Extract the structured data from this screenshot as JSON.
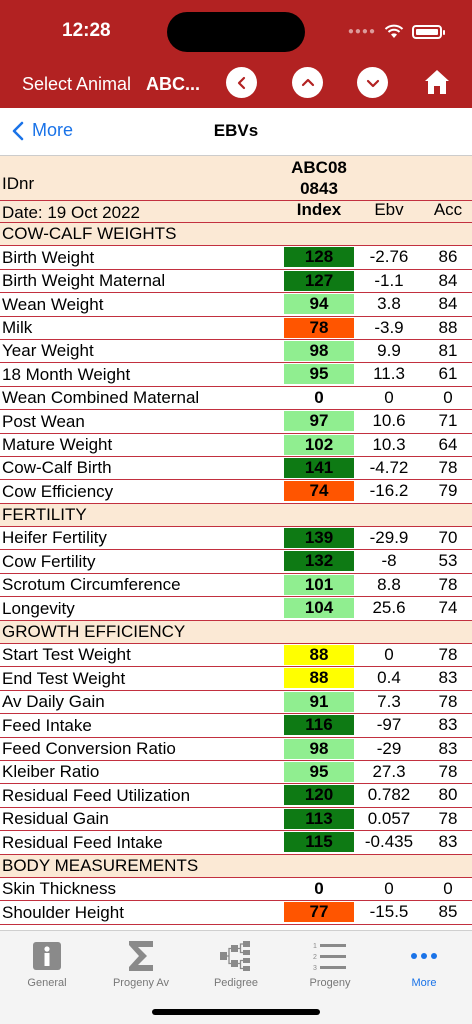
{
  "status": {
    "time": "12:28"
  },
  "toolbar": {
    "select_label": "Select Animal",
    "select_value": "ABC..."
  },
  "nav": {
    "back_label": "More",
    "title": "EBVs"
  },
  "header": {
    "idnr_label": "IDnr",
    "animal_id_line1": "ABC08",
    "animal_id_line2": "0843",
    "date_label": "Date:  19 Oct 2022",
    "col_index": "Index",
    "col_ebv": "Ebv",
    "col_acc": "Acc"
  },
  "colors": {
    "dark_green": "#0e7a14",
    "light_green": "#90ee90",
    "orange": "#ff5500",
    "yellow": "#ffff00",
    "brand_red": "#b22222"
  },
  "rows": [
    {
      "type": "section",
      "name": "COW-CALF WEIGHTS"
    },
    {
      "type": "trait",
      "name": "Birth Weight",
      "index": "128",
      "ebv": "-2.76",
      "acc": "86",
      "color": "dark"
    },
    {
      "type": "trait",
      "name": "Birth Weight Maternal",
      "index": "127",
      "ebv": "-1.1",
      "acc": "84",
      "color": "dark"
    },
    {
      "type": "trait",
      "name": "Wean Weight",
      "index": "94",
      "ebv": "3.8",
      "acc": "84",
      "color": "light"
    },
    {
      "type": "trait",
      "name": "Milk",
      "index": "78",
      "ebv": "-3.9",
      "acc": "88",
      "color": "orange"
    },
    {
      "type": "trait",
      "name": "Year Weight",
      "index": "98",
      "ebv": "9.9",
      "acc": "81",
      "color": "light"
    },
    {
      "type": "trait",
      "name": "18 Month Weight",
      "index": "95",
      "ebv": "11.3",
      "acc": "61",
      "color": "light"
    },
    {
      "type": "trait",
      "name": "Wean Combined Maternal",
      "index": "0",
      "ebv": "0",
      "acc": "0",
      "color": "none"
    },
    {
      "type": "trait",
      "name": "Post Wean",
      "index": "97",
      "ebv": "10.6",
      "acc": "71",
      "color": "light"
    },
    {
      "type": "trait",
      "name": "Mature Weight",
      "index": "102",
      "ebv": "10.3",
      "acc": "64",
      "color": "light"
    },
    {
      "type": "trait",
      "name": "Cow-Calf Birth",
      "index": "141",
      "ebv": "-4.72",
      "acc": "78",
      "color": "dark"
    },
    {
      "type": "trait",
      "name": "Cow Efficiency",
      "index": "74",
      "ebv": "-16.2",
      "acc": "79",
      "color": "orange"
    },
    {
      "type": "section",
      "name": "FERTILITY"
    },
    {
      "type": "trait",
      "name": "Heifer Fertility",
      "index": "139",
      "ebv": "-29.9",
      "acc": "70",
      "color": "dark"
    },
    {
      "type": "trait",
      "name": "Cow Fertility",
      "index": "132",
      "ebv": "-8",
      "acc": "53",
      "color": "dark"
    },
    {
      "type": "trait",
      "name": "Scrotum Circumference",
      "index": "101",
      "ebv": "8.8",
      "acc": "78",
      "color": "light"
    },
    {
      "type": "trait",
      "name": "Longevity",
      "index": "104",
      "ebv": "25.6",
      "acc": "74",
      "color": "light"
    },
    {
      "type": "section",
      "name": "GROWTH EFFICIENCY"
    },
    {
      "type": "trait",
      "name": "Start Test Weight",
      "index": "88",
      "ebv": "0",
      "acc": "78",
      "color": "yellow"
    },
    {
      "type": "trait",
      "name": "End Test Weight",
      "index": "88",
      "ebv": "0.4",
      "acc": "83",
      "color": "yellow"
    },
    {
      "type": "trait",
      "name": "Av Daily Gain",
      "index": "91",
      "ebv": "7.3",
      "acc": "78",
      "color": "light"
    },
    {
      "type": "trait",
      "name": "Feed Intake",
      "index": "116",
      "ebv": "-97",
      "acc": "83",
      "color": "dark"
    },
    {
      "type": "trait",
      "name": "Feed Conversion Ratio",
      "index": "98",
      "ebv": "-29",
      "acc": "83",
      "color": "light"
    },
    {
      "type": "trait",
      "name": "Kleiber Ratio",
      "index": "95",
      "ebv": "27.3",
      "acc": "78",
      "color": "light"
    },
    {
      "type": "trait",
      "name": "Residual Feed Utilization",
      "index": "120",
      "ebv": "0.782",
      "acc": "80",
      "color": "dark"
    },
    {
      "type": "trait",
      "name": "Residual Gain",
      "index": "113",
      "ebv": "0.057",
      "acc": "78",
      "color": "dark"
    },
    {
      "type": "trait",
      "name": "Residual Feed Intake",
      "index": "115",
      "ebv": "-0.435",
      "acc": "83",
      "color": "dark"
    },
    {
      "type": "section",
      "name": "BODY MEASUREMENTS"
    },
    {
      "type": "trait",
      "name": "Skin Thickness",
      "index": "0",
      "ebv": "0",
      "acc": "0",
      "color": "none"
    },
    {
      "type": "trait",
      "name": "Shoulder Height",
      "index": "77",
      "ebv": "-15.5",
      "acc": "85",
      "color": "orange"
    }
  ],
  "tabs": [
    {
      "label": "General",
      "icon": "info-icon",
      "active": false
    },
    {
      "label": "Progeny Av",
      "icon": "sigma-icon",
      "active": false
    },
    {
      "label": "Pedigree",
      "icon": "pedigree-icon",
      "active": false
    },
    {
      "label": "Progeny",
      "icon": "numbered-list-icon",
      "active": false
    },
    {
      "label": "More",
      "icon": "more-dots-icon",
      "active": true
    }
  ]
}
